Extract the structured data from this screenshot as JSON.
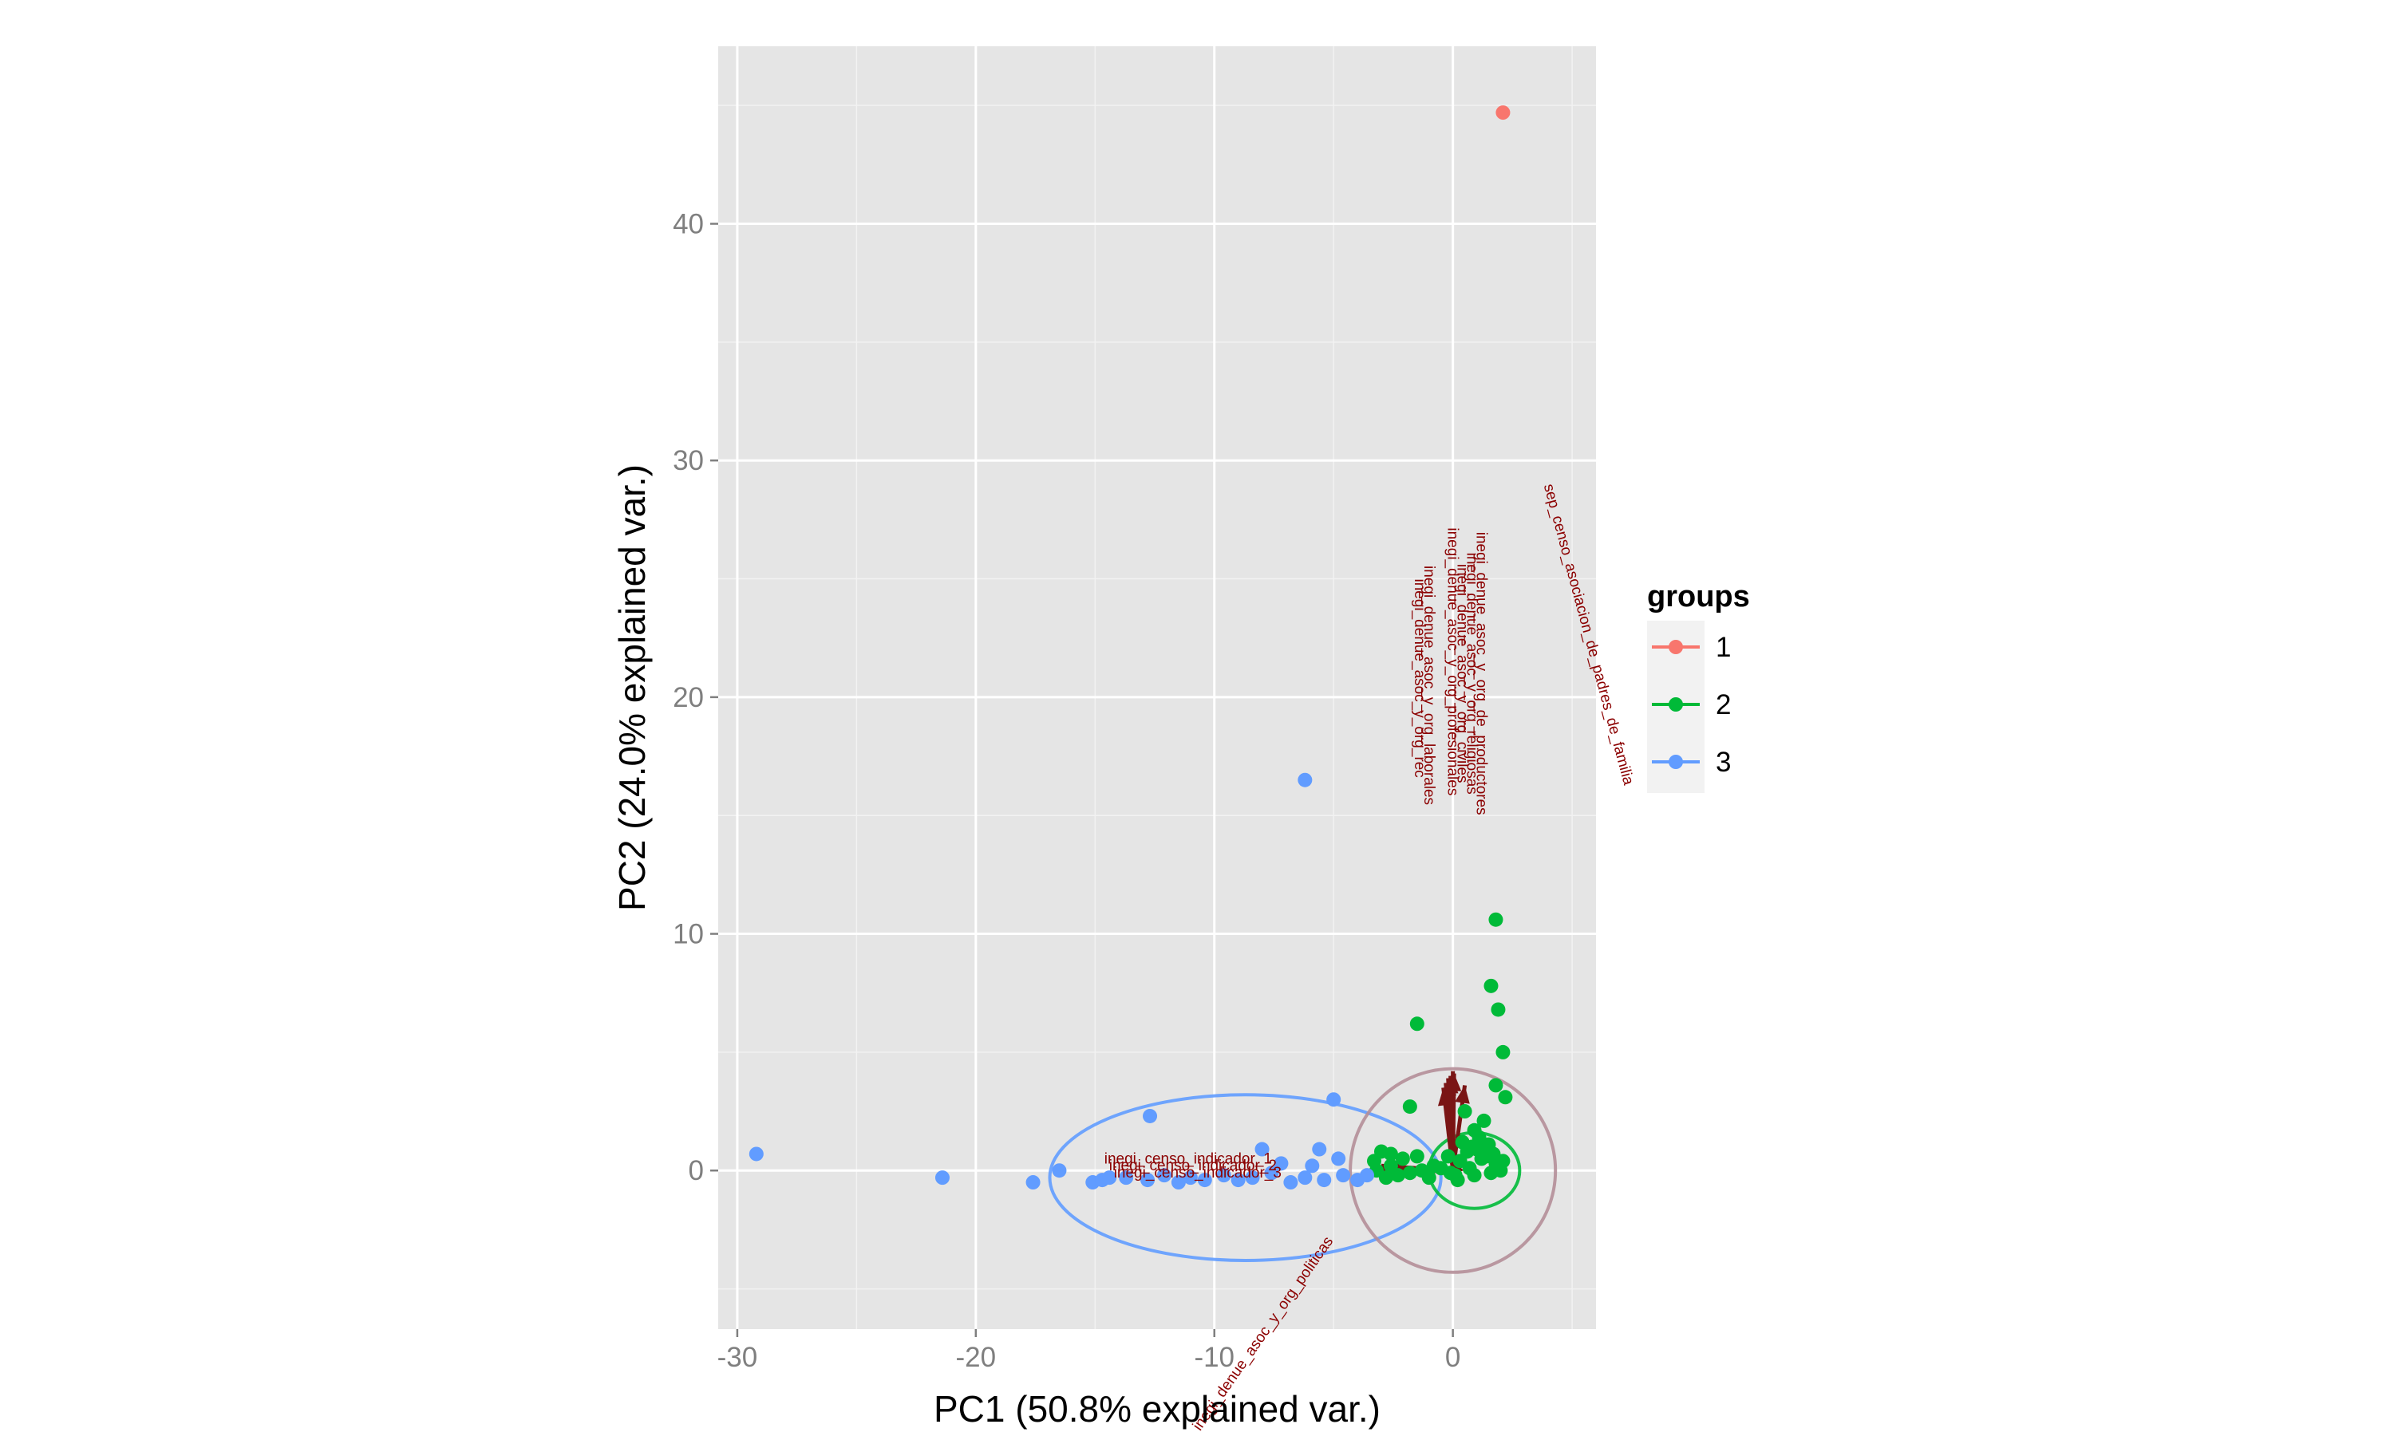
{
  "chart_data": {
    "type": "scatter",
    "title": "",
    "xlabel": "PC1 (50.8% explained var.)",
    "ylabel": "PC2 (24.0% explained var.)",
    "xlim": [
      -30.8,
      6.0
    ],
    "ylim": [
      -6.7,
      47.5
    ],
    "xticks": [
      -30,
      -20,
      -10,
      0
    ],
    "xtick_labels": [
      "-30",
      "-20",
      "-10",
      "0"
    ],
    "yticks": [
      0,
      10,
      20,
      30,
      40
    ],
    "ytick_labels": [
      "0",
      "10",
      "20",
      "30",
      "40"
    ],
    "grid": true,
    "panel_background": "#e5e5e5",
    "legend": {
      "title": "groups",
      "placement": "right",
      "entries": [
        {
          "label": "1",
          "color": "#f8766d"
        },
        {
          "label": "2",
          "color": "#00ba38"
        },
        {
          "label": "3",
          "color": "#619cff"
        }
      ]
    },
    "series": [
      {
        "name": "1",
        "color": "#f8766d",
        "points": [
          [
            2.1,
            44.7
          ]
        ]
      },
      {
        "name": "2",
        "color": "#00ba38",
        "points": [
          [
            -1.5,
            6.2
          ],
          [
            1.8,
            10.6
          ],
          [
            1.6,
            7.8
          ],
          [
            1.9,
            6.8
          ],
          [
            2.1,
            5.0
          ],
          [
            1.8,
            3.6
          ],
          [
            2.2,
            3.1
          ],
          [
            0.5,
            2.5
          ],
          [
            -1.8,
            2.7
          ],
          [
            1.3,
            2.1
          ],
          [
            0.9,
            1.7
          ],
          [
            -3.0,
            0.8
          ],
          [
            -2.6,
            0.7
          ],
          [
            -3.3,
            0.4
          ],
          [
            -2.1,
            0.5
          ],
          [
            -1.5,
            0.6
          ],
          [
            -0.8,
            0.2
          ],
          [
            -1.3,
            0.0
          ],
          [
            -2.3,
            -0.2
          ],
          [
            -3.2,
            0.0
          ],
          [
            -2.8,
            -0.3
          ],
          [
            -1.0,
            -0.3
          ],
          [
            0.3,
            0.4
          ],
          [
            0.6,
            0.8
          ],
          [
            0.9,
            -0.2
          ],
          [
            1.2,
            0.5
          ],
          [
            1.5,
            1.1
          ],
          [
            1.8,
            0.3
          ],
          [
            0.2,
            -0.4
          ],
          [
            0.7,
            0.1
          ],
          [
            1.0,
            0.9
          ],
          [
            1.6,
            -0.1
          ],
          [
            2.0,
            0.0
          ],
          [
            1.4,
            0.6
          ],
          [
            0.4,
            1.2
          ],
          [
            -0.2,
            0.6
          ],
          [
            -0.5,
            0.1
          ],
          [
            0.1,
            -0.2
          ],
          [
            1.1,
            1.4
          ],
          [
            1.7,
            0.7
          ],
          [
            2.1,
            0.4
          ],
          [
            0.8,
            1.0
          ],
          [
            -1.8,
            -0.1
          ],
          [
            -2.6,
            0.2
          ],
          [
            -0.1,
            -0.1
          ]
        ]
      },
      {
        "name": "3",
        "color": "#619cff",
        "points": [
          [
            -29.2,
            0.7
          ],
          [
            -21.4,
            -0.3
          ],
          [
            -17.6,
            -0.5
          ],
          [
            -16.5,
            0.0
          ],
          [
            -15.1,
            -0.5
          ],
          [
            -14.7,
            -0.4
          ],
          [
            -14.4,
            -0.3
          ],
          [
            -13.7,
            -0.3
          ],
          [
            -12.8,
            -0.4
          ],
          [
            -12.1,
            -0.2
          ],
          [
            -11.5,
            -0.5
          ],
          [
            -12.7,
            2.3
          ],
          [
            -8.0,
            0.9
          ],
          [
            -6.2,
            16.5
          ],
          [
            -5.0,
            3.0
          ],
          [
            -5.6,
            0.9
          ],
          [
            -4.8,
            0.5
          ],
          [
            -9.6,
            -0.2
          ],
          [
            -9.0,
            -0.4
          ],
          [
            -8.4,
            -0.3
          ],
          [
            -7.6,
            -0.1
          ],
          [
            -6.8,
            -0.5
          ],
          [
            -6.2,
            -0.3
          ],
          [
            -5.4,
            -0.4
          ],
          [
            -4.6,
            -0.2
          ],
          [
            -4.0,
            -0.4
          ],
          [
            -3.6,
            -0.2
          ],
          [
            -10.4,
            -0.4
          ],
          [
            -11.0,
            -0.3
          ],
          [
            -7.2,
            0.3
          ],
          [
            -5.9,
            0.2
          ]
        ]
      }
    ],
    "ellipses": [
      {
        "group": "3",
        "color": "#619cff",
        "cx": -8.7,
        "cy": -0.3,
        "rx": 8.2,
        "ry": 3.5
      },
      {
        "group": "2",
        "color": "#00ba38",
        "cx": 0.9,
        "cy": 0.0,
        "rx": 1.9,
        "ry": 1.6
      },
      {
        "group": "circle",
        "color": "#b48e98",
        "cx": 0.0,
        "cy": 0.0,
        "rx": 4.3,
        "ry": 4.3
      }
    ],
    "loadings": [
      {
        "label": "inegi_denue_asoc_y_org_de_productores",
        "x": 0.05,
        "y": 4.1,
        "lx": 1.0,
        "ly": 21.0,
        "angle": 90
      },
      {
        "label": "inegi_denue_asoc_y_org_religiosas",
        "x": 0.0,
        "y": 4.2,
        "lx": 0.6,
        "ly": 21.0,
        "angle": 90
      },
      {
        "label": "inegi_denue_asoc_y_org_civiles",
        "x": -0.1,
        "y": 4.0,
        "lx": 0.2,
        "ly": 21.0,
        "angle": 90
      },
      {
        "label": "inegi_denue_asoc_y_org_profesionales",
        "x": -0.2,
        "y": 3.9,
        "lx": -0.2,
        "ly": 21.5,
        "angle": 90
      },
      {
        "label": "inegi_denue_asoc_y_org_laborales",
        "x": -0.3,
        "y": 3.7,
        "lx": -1.2,
        "ly": 20.5,
        "angle": 90
      },
      {
        "label": "inegi_denue_asoc_y_org_rec",
        "x": -0.4,
        "y": 3.5,
        "lx": -1.6,
        "ly": 20.8,
        "angle": 90
      },
      {
        "label": "sep_censo_asociacion_de_padres_de_familia",
        "x": 0.5,
        "y": 3.6,
        "lx": 5.5,
        "ly": 22.6,
        "angle": 75
      },
      {
        "label": "inegi_denue_asoc_y_org_politicas",
        "x": -0.3,
        "y": -0.3,
        "lx": -7.8,
        "ly": -7.0,
        "angle": -55
      },
      {
        "label": "inegi_censo_indicador_1",
        "x": -3.0,
        "y": 0.2,
        "lx": -11.1,
        "ly": 0.3,
        "angle": 0
      },
      {
        "label": "inegi_censo_indicador_2",
        "x": -3.2,
        "y": 0.0,
        "lx": -10.9,
        "ly": 0.0,
        "angle": 0
      },
      {
        "label": "inegi_censo_indicador_3",
        "x": -3.1,
        "y": -0.1,
        "lx": -10.7,
        "ly": -0.3,
        "angle": 0
      }
    ]
  }
}
